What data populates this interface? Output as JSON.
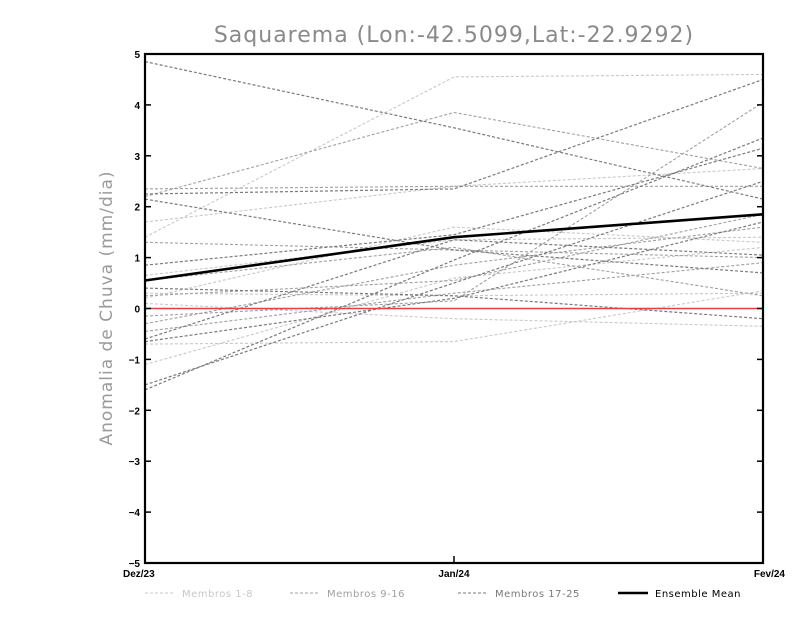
{
  "chart_data": {
    "type": "line",
    "title": "Saquarema (Lon:-42.5099,Lat:-22.9292)",
    "ylabel": "Anomalia de Chuva (mm/dia)",
    "xlabel": "",
    "x": [
      "Dez/23",
      "Jan/24",
      "Fev/24"
    ],
    "ylim": [
      -5,
      5
    ],
    "yticks": [
      -5,
      -4,
      -3,
      -2,
      -1,
      0,
      1,
      2,
      3,
      4,
      5
    ],
    "grid": false,
    "legend_position": "bottom",
    "reference_line": {
      "y": 0,
      "color": "#e8403c"
    },
    "groups": [
      {
        "name": "Membros 1-8",
        "color": "#c8c8c8",
        "dash": "3,2",
        "width": 1.1
      },
      {
        "name": "Membros 9-16",
        "color": "#a0a0a0",
        "dash": "3,2",
        "width": 1.1
      },
      {
        "name": "Membros 17-25",
        "color": "#7a7a7a",
        "dash": "3,2",
        "width": 1.2
      },
      {
        "name": "Ensemble Mean",
        "color": "#000000",
        "dash": "",
        "width": 2.6
      }
    ],
    "series": [
      {
        "group": 0,
        "values": [
          1.4,
          4.55,
          4.6
        ]
      },
      {
        "group": 0,
        "values": [
          1.7,
          2.4,
          2.75
        ]
      },
      {
        "group": 0,
        "values": [
          0.2,
          1.6,
          1.3
        ]
      },
      {
        "group": 0,
        "values": [
          -0.7,
          -0.65,
          0.35
        ]
      },
      {
        "group": 0,
        "values": [
          0.1,
          -0.2,
          -0.35
        ]
      },
      {
        "group": 0,
        "values": [
          -1.1,
          0.6,
          1.2
        ]
      },
      {
        "group": 0,
        "values": [
          0.3,
          0.25,
          0.3
        ]
      },
      {
        "group": 0,
        "values": [
          0.65,
          1.35,
          1.4
        ]
      },
      {
        "group": 1,
        "values": [
          2.35,
          2.4,
          2.4
        ]
      },
      {
        "group": 1,
        "values": [
          2.2,
          3.85,
          2.75
        ]
      },
      {
        "group": 1,
        "values": [
          -0.15,
          0.15,
          4.05
        ]
      },
      {
        "group": 1,
        "values": [
          1.3,
          1.15,
          1.0
        ]
      },
      {
        "group": 1,
        "values": [
          -0.3,
          0.85,
          1.6
        ]
      },
      {
        "group": 1,
        "values": [
          0.55,
          1.2,
          0.25
        ]
      },
      {
        "group": 1,
        "values": [
          -0.45,
          0.3,
          0.9
        ]
      },
      {
        "group": 1,
        "values": [
          0.25,
          0.55,
          1.85
        ]
      },
      {
        "group": 2,
        "values": [
          4.85,
          3.55,
          2.15
        ]
      },
      {
        "group": 2,
        "values": [
          2.25,
          2.35,
          4.5
        ]
      },
      {
        "group": 2,
        "values": [
          -1.6,
          0.95,
          3.35
        ]
      },
      {
        "group": 2,
        "values": [
          -1.5,
          0.5,
          2.5
        ]
      },
      {
        "group": 2,
        "values": [
          0.85,
          1.45,
          3.15
        ]
      },
      {
        "group": 2,
        "values": [
          0.4,
          0.25,
          -0.2
        ]
      },
      {
        "group": 2,
        "values": [
          -0.6,
          1.35,
          1.05
        ]
      },
      {
        "group": 2,
        "values": [
          2.15,
          1.15,
          0.7
        ]
      },
      {
        "group": 2,
        "values": [
          -0.65,
          0.2,
          1.7
        ]
      },
      {
        "group": 3,
        "name": "Ensemble Mean",
        "values": [
          0.55,
          1.4,
          1.85
        ]
      }
    ]
  }
}
